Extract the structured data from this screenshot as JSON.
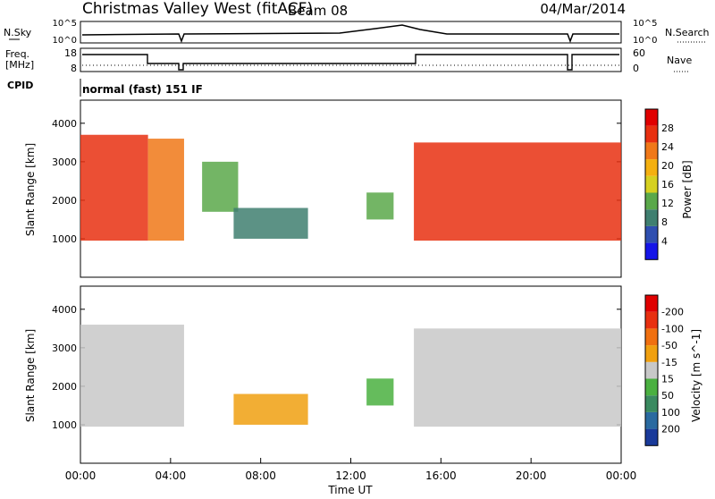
{
  "header": {
    "title": "Christmas Valley West (fitACF)",
    "beam": "Beam 08",
    "date": "04/Mar/2014"
  },
  "nsky_panel": {
    "left_label": "N.Sky",
    "right_label": "N.Search",
    "y_ticks": [
      "10^5",
      "10^0"
    ],
    "right_ticks": [
      "10^5",
      "10^0"
    ]
  },
  "freq_panel": {
    "left_label_1": "Freq.",
    "left_label_2": "[MHz]",
    "right_label": "Nave",
    "y_ticks": [
      "18",
      "8"
    ],
    "right_ticks": [
      "60",
      "0"
    ]
  },
  "cpid": {
    "label": "CPID",
    "text": "normal (fast) 151 IF"
  },
  "chart_data": [
    {
      "type": "heatmap",
      "name": "power",
      "ylabel": "Slant Range [km]",
      "xlabel": "",
      "ylim": [
        0,
        4600
      ],
      "yticks": [
        1000,
        2000,
        3000,
        4000
      ],
      "xlim": [
        0,
        24
      ],
      "colorbar": {
        "label": "Power [dB]",
        "ticks": [
          "4",
          "8",
          "12",
          "16",
          "20",
          "24",
          "28"
        ],
        "colors": [
          "#1515e8",
          "#2f4fb0",
          "#3f7f70",
          "#5aa84a",
          "#d6d020",
          "#f4b010",
          "#f07818",
          "#e83010",
          "#e00000"
        ]
      },
      "regions": [
        {
          "t0": 0.0,
          "t1": 3.0,
          "r0": 950,
          "r1": 3700,
          "level": 7
        },
        {
          "t0": 3.0,
          "t1": 4.6,
          "r0": 950,
          "r1": 3600,
          "level": 6
        },
        {
          "t0": 5.4,
          "t1": 7.0,
          "r0": 1700,
          "r1": 3000,
          "level": 3
        },
        {
          "t0": 6.8,
          "t1": 10.1,
          "r0": 1000,
          "r1": 1800,
          "level": 2
        },
        {
          "t0": 12.7,
          "t1": 13.9,
          "r0": 1500,
          "r1": 2200,
          "level": 3
        },
        {
          "t0": 14.8,
          "t1": 24.0,
          "r0": 950,
          "r1": 3500,
          "level": 7
        }
      ]
    },
    {
      "type": "heatmap",
      "name": "velocity",
      "ylabel": "Slant Range [km]",
      "xlabel": "Time UT",
      "ylim": [
        0,
        4600
      ],
      "yticks": [
        1000,
        2000,
        3000,
        4000
      ],
      "xlim": [
        0,
        24
      ],
      "xticks": [
        "00:00",
        "04:00",
        "08:00",
        "12:00",
        "16:00",
        "20:00",
        "00:00"
      ],
      "colorbar": {
        "label": "Velocity [m s^-1]",
        "ticks": [
          "200",
          "100",
          "50",
          "15",
          "-15",
          "-50",
          "-100",
          "-200"
        ],
        "colors": [
          "#1a3a9a",
          "#2a6aa0",
          "#3a8a60",
          "#4ab040",
          "#c8c8c8",
          "#f0a010",
          "#f07010",
          "#e83010",
          "#e00000"
        ]
      },
      "regions": [
        {
          "t0": 0.0,
          "t1": 4.6,
          "r0": 950,
          "r1": 3600,
          "level": 4
        },
        {
          "t0": 6.8,
          "t1": 10.1,
          "r0": 1000,
          "r1": 1800,
          "level": 5
        },
        {
          "t0": 12.7,
          "t1": 13.9,
          "r0": 1500,
          "r1": 2200,
          "level": 3
        },
        {
          "t0": 14.8,
          "t1": 24.0,
          "r0": 950,
          "r1": 3500,
          "level": 4
        }
      ]
    }
  ]
}
